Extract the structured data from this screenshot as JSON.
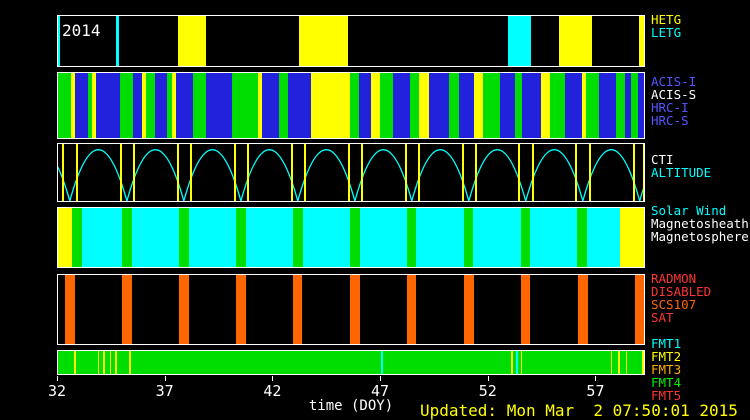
{
  "figure": {
    "year_label": "2014",
    "updated": "Updated: Mon Mar  2 07:50:01 2015"
  },
  "chart_data": {
    "type": "timeline",
    "xlabel": "time (DOY)",
    "x_range": [
      32,
      59.3
    ],
    "x_ticks": [
      32,
      37,
      42,
      47,
      52,
      57
    ],
    "palette": {
      "black": "#000000",
      "white": "#ffffff",
      "yellow": "#ffff00",
      "cyan": "#00ffff",
      "green": "#00dd00",
      "blue": "#2222dd",
      "orange": "#ff6600",
      "red": "#ff3333"
    },
    "bands": [
      {
        "id": "gratings",
        "background": "black",
        "labels": [
          {
            "text": "HETG",
            "color": "#ffff00"
          },
          {
            "text": "LETG",
            "color": "#00ffff"
          }
        ],
        "segments": [
          [
            32.0,
            32.1,
            "cyan"
          ],
          [
            34.7,
            34.85,
            "cyan"
          ],
          [
            37.6,
            38.9,
            "yellow"
          ],
          [
            43.25,
            45.5,
            "yellow"
          ],
          [
            52.95,
            54.05,
            "cyan"
          ],
          [
            55.35,
            56.9,
            "yellow"
          ],
          [
            59.05,
            59.3,
            "yellow"
          ]
        ]
      },
      {
        "id": "instruments",
        "background": "black",
        "labels": [
          {
            "text": "ACIS-I",
            "color": "#5555ff"
          },
          {
            "text": "ACIS-S",
            "color": "#ffffff"
          },
          {
            "text": "HRC-I",
            "color": "#5555ff"
          },
          {
            "text": "HRC-S",
            "color": "#5555ff"
          }
        ],
        "segments": [
          [
            32.0,
            32.6,
            "green"
          ],
          [
            32.6,
            32.8,
            "yellow"
          ],
          [
            32.8,
            33.4,
            "blue"
          ],
          [
            33.4,
            33.6,
            "green"
          ],
          [
            33.6,
            33.75,
            "yellow"
          ],
          [
            33.75,
            34.9,
            "blue"
          ],
          [
            34.9,
            35.5,
            "green"
          ],
          [
            35.5,
            35.9,
            "blue"
          ],
          [
            35.9,
            36.1,
            "yellow"
          ],
          [
            36.1,
            36.5,
            "green"
          ],
          [
            36.5,
            37.1,
            "blue"
          ],
          [
            37.1,
            37.3,
            "green"
          ],
          [
            37.3,
            37.5,
            "yellow"
          ],
          [
            37.5,
            38.3,
            "blue"
          ],
          [
            38.3,
            38.9,
            "green"
          ],
          [
            38.9,
            40.1,
            "blue"
          ],
          [
            40.1,
            41.3,
            "green"
          ],
          [
            41.3,
            41.5,
            "yellow"
          ],
          [
            41.5,
            42.3,
            "blue"
          ],
          [
            42.3,
            42.7,
            "green"
          ],
          [
            42.7,
            43.8,
            "blue"
          ],
          [
            43.8,
            45.6,
            "yellow"
          ],
          [
            45.6,
            46.0,
            "green"
          ],
          [
            46.0,
            46.6,
            "blue"
          ],
          [
            46.6,
            47.0,
            "yellow"
          ],
          [
            47.0,
            47.6,
            "green"
          ],
          [
            47.6,
            48.4,
            "blue"
          ],
          [
            48.4,
            48.8,
            "green"
          ],
          [
            48.8,
            49.3,
            "yellow"
          ],
          [
            49.3,
            50.2,
            "blue"
          ],
          [
            50.2,
            50.7,
            "green"
          ],
          [
            50.7,
            51.4,
            "blue"
          ],
          [
            51.4,
            51.8,
            "yellow"
          ],
          [
            51.8,
            52.6,
            "green"
          ],
          [
            52.6,
            53.3,
            "blue"
          ],
          [
            53.3,
            53.6,
            "green"
          ],
          [
            53.6,
            54.5,
            "blue"
          ],
          [
            54.5,
            54.9,
            "yellow"
          ],
          [
            54.9,
            55.6,
            "green"
          ],
          [
            55.6,
            56.4,
            "blue"
          ],
          [
            56.4,
            56.6,
            "yellow"
          ],
          [
            56.6,
            57.2,
            "green"
          ],
          [
            57.2,
            58.0,
            "blue"
          ],
          [
            58.0,
            58.4,
            "green"
          ],
          [
            58.4,
            58.7,
            "blue"
          ],
          [
            58.7,
            59.0,
            "green"
          ],
          [
            59.0,
            59.3,
            "blue"
          ]
        ]
      },
      {
        "id": "altitude",
        "background": "black",
        "labels": [
          {
            "text": "CTI",
            "color": "#ffffff"
          },
          {
            "text": "ALTITUDE",
            "color": "#00ffff"
          }
        ],
        "curve_color": "cyan",
        "period_days": 2.655,
        "perigees": [
          32.55,
          35.21,
          37.86,
          40.52,
          43.17,
          45.83,
          48.48,
          51.14,
          53.79,
          56.45,
          59.1
        ],
        "cti_lines": [
          32.2,
          32.85,
          34.9,
          35.5,
          37.55,
          38.15,
          40.2,
          40.8,
          42.85,
          43.45,
          45.5,
          46.1,
          48.15,
          48.75,
          50.8,
          51.45,
          53.45,
          54.1,
          56.1,
          56.75,
          58.8,
          59.25
        ]
      },
      {
        "id": "crm-region",
        "background": "cyan",
        "labels": [
          {
            "text": "Solar Wind",
            "color": "#00ffff"
          },
          {
            "text": "Magnetosheath",
            "color": "#ffffff"
          },
          {
            "text": "Magnetosphere",
            "color": "#ffffff"
          }
        ],
        "segments": [
          [
            32.0,
            32.65,
            "yellow"
          ],
          [
            32.65,
            33.1,
            "green"
          ],
          [
            35.0,
            35.45,
            "green"
          ],
          [
            37.65,
            38.1,
            "green"
          ],
          [
            40.3,
            40.75,
            "green"
          ],
          [
            42.95,
            43.4,
            "green"
          ],
          [
            45.6,
            46.05,
            "green"
          ],
          [
            48.25,
            48.7,
            "green"
          ],
          [
            50.9,
            51.35,
            "green"
          ],
          [
            53.55,
            54.0,
            "green"
          ],
          [
            56.2,
            56.65,
            "green"
          ],
          [
            58.2,
            59.3,
            "yellow"
          ]
        ]
      },
      {
        "id": "radmon",
        "background": "black",
        "labels": [
          {
            "text": "RADMON",
            "color": "#ff3333"
          },
          {
            "text": "DISABLED",
            "color": "#ff3333"
          },
          {
            "text": "SCS107",
            "color": "#ff6600"
          },
          {
            "text": "SAT",
            "color": "#ff3333"
          }
        ],
        "segments": [
          [
            32.33,
            32.78,
            "orange"
          ],
          [
            34.99,
            35.44,
            "orange"
          ],
          [
            37.64,
            38.09,
            "orange"
          ],
          [
            40.3,
            40.74,
            "orange"
          ],
          [
            42.95,
            43.39,
            "orange"
          ],
          [
            45.61,
            46.05,
            "orange"
          ],
          [
            48.26,
            48.7,
            "orange"
          ],
          [
            50.92,
            51.36,
            "orange"
          ],
          [
            53.57,
            54.01,
            "orange"
          ],
          [
            56.23,
            56.67,
            "orange"
          ],
          [
            58.88,
            59.3,
            "orange"
          ]
        ]
      },
      {
        "id": "telemetry",
        "background": "green",
        "labels": [
          {
            "text": "FMT1",
            "color": "#00ffff"
          },
          {
            "text": "FMT2",
            "color": "#ffff00"
          },
          {
            "text": "FMT3",
            "color": "#ffaa00"
          },
          {
            "text": "FMT4",
            "color": "#00ee00"
          },
          {
            "text": "FMT5",
            "color": "#ff3333"
          }
        ],
        "segments": [
          [
            32.75,
            32.83,
            "yellow"
          ],
          [
            33.85,
            33.93,
            "yellow"
          ],
          [
            34.1,
            34.18,
            "yellow"
          ],
          [
            34.4,
            34.48,
            "yellow"
          ],
          [
            34.65,
            34.73,
            "yellow"
          ],
          [
            35.3,
            35.38,
            "yellow"
          ],
          [
            47.05,
            47.13,
            "cyan"
          ],
          [
            53.1,
            53.18,
            "yellow"
          ],
          [
            53.35,
            53.43,
            "cyan"
          ],
          [
            53.55,
            53.63,
            "yellow"
          ],
          [
            57.75,
            57.83,
            "yellow"
          ],
          [
            58.1,
            58.18,
            "yellow"
          ],
          [
            58.45,
            58.53,
            "yellow"
          ],
          [
            59.2,
            59.28,
            "yellow"
          ]
        ]
      }
    ]
  }
}
